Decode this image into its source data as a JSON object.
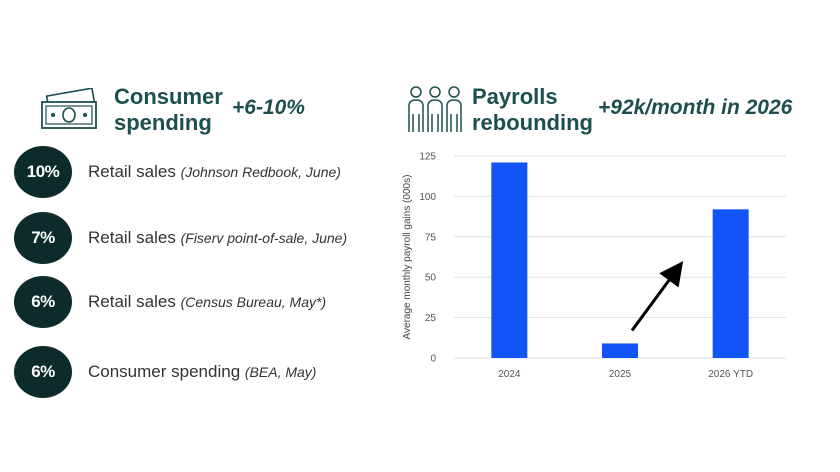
{
  "consumer": {
    "title_line1": "Consumer",
    "title_line2": "spending",
    "metric": "+6-10%",
    "icon": "money-icon",
    "stats": [
      {
        "value": "10%",
        "label": "Retail sales",
        "source": "(Johnson Redbook, June)"
      },
      {
        "value": "7%",
        "label": "Retail sales",
        "source": "(Fiserv point-of-sale, June)"
      },
      {
        "value": "6%",
        "label": "Retail sales",
        "source": "(Census Bureau, May*)"
      },
      {
        "value": "6%",
        "label": "Consumer spending",
        "source": "(BEA, May)"
      }
    ]
  },
  "payrolls": {
    "title_line1": "Payrolls",
    "title_line2": "rebounding",
    "metric": "+92k/month in 2026",
    "icon": "workers-icon"
  },
  "colors": {
    "accent_teal": "#1d4f4f",
    "badge_dark": "#0d2b2b",
    "bar_blue": "#1254f5"
  },
  "chart_data": {
    "type": "bar",
    "categories": [
      "2024",
      "2025",
      "2026 YTD"
    ],
    "values": [
      121,
      9,
      92
    ],
    "ylabel": "Average monthly payroll gains (000s)",
    "ylim": [
      0,
      125
    ],
    "yticks": [
      0,
      25,
      50,
      75,
      100,
      125
    ],
    "grid": true,
    "annotation": "up-arrow-from-2025-toward-2026"
  }
}
